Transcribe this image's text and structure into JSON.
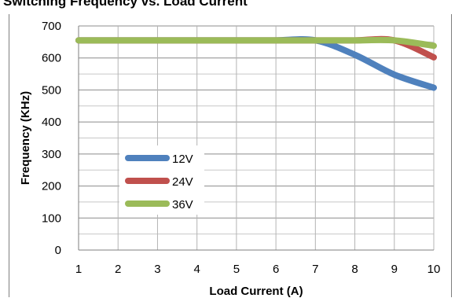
{
  "chart_data": {
    "type": "line",
    "title": "Switching Frequency vs. Load Current",
    "xlabel": "Load Current (A)",
    "ylabel": "Frequency (KHz)",
    "x": [
      1,
      2,
      3,
      4,
      5,
      6,
      7,
      8,
      9,
      10
    ],
    "xlim": [
      1,
      10
    ],
    "ylim": [
      0,
      700
    ],
    "yticks": [
      0,
      100,
      200,
      300,
      400,
      500,
      600,
      700
    ],
    "grid": true,
    "legend_position": "center-left",
    "series": [
      {
        "name": "12V",
        "color": "#4f81bd",
        "values": [
          655,
          655,
          655,
          655,
          655,
          655,
          655,
          610,
          548,
          507
        ]
      },
      {
        "name": "24V",
        "color": "#c0504d",
        "values": [
          655,
          655,
          655,
          655,
          655,
          655,
          655,
          655,
          655,
          602
        ]
      },
      {
        "name": "36V",
        "color": "#9bbb59",
        "values": [
          655,
          655,
          655,
          655,
          655,
          655,
          655,
          655,
          655,
          638
        ]
      }
    ]
  }
}
